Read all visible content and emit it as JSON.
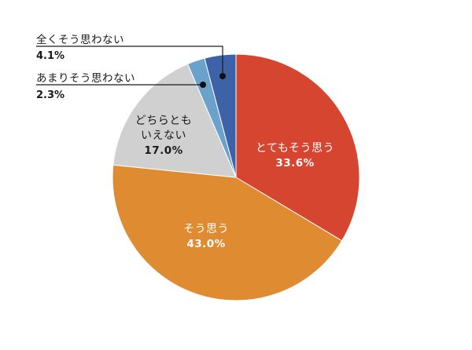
{
  "chart_data": {
    "type": "pie",
    "title": "",
    "start_angle_deg": 0,
    "direction": "clockwise",
    "center": [
      300,
      226
    ],
    "radius": 157,
    "slices": [
      {
        "label": "とてもそう思う",
        "value": 33.6,
        "value_label": "33.6%",
        "color": "#D5452F",
        "label_position": "inside",
        "text_color": "#ffffff"
      },
      {
        "label": "そう思う",
        "value": 43.0,
        "value_label": "43.0%",
        "color": "#DF8B31",
        "label_position": "inside",
        "text_color": "#ffffff"
      },
      {
        "label": "どちらともいえない",
        "value": 17.0,
        "value_label": "17.0%",
        "color": "#D0D0D0",
        "label_position": "inside",
        "text_color": "#1a1a1a"
      },
      {
        "label": "あまりそう思わない",
        "value": 2.3,
        "value_label": "2.3%",
        "color": "#6AA2CB",
        "label_position": "outside",
        "text_color": "#1a1a1a"
      },
      {
        "label": "全くそう思わない",
        "value": 4.1,
        "value_label": "4.1%",
        "color": "#3E62A7",
        "label_position": "outside",
        "text_color": "#1a1a1a"
      }
    ],
    "legend": "none"
  },
  "labels": {
    "very_agree": {
      "line1": "とてもそう思う",
      "pct": "33.6%"
    },
    "agree": {
      "line1": "そう思う",
      "pct": "43.0%"
    },
    "neutral": {
      "line1": "どちらとも",
      "line2": "いえない",
      "pct": "17.0%"
    },
    "disagree": {
      "line1": "あまりそう思わない",
      "pct": "2.3%"
    },
    "strongly_disagree": {
      "line1": "全くそう思わない",
      "pct": "4.1%"
    }
  }
}
